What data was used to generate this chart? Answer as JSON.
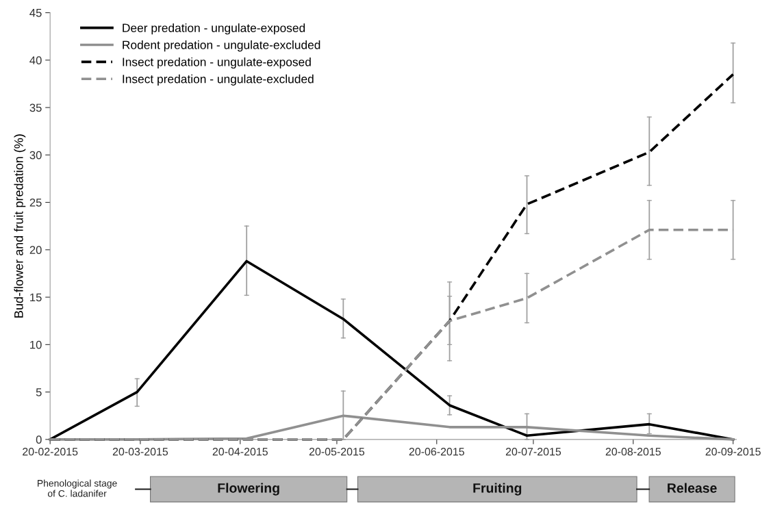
{
  "chart_data": {
    "type": "line",
    "ylabel": "Bud-flower and fruit predation (%)",
    "x": [
      "2015-02-20",
      "2015-03-19",
      "2015-04-22",
      "2015-05-22",
      "2015-06-24",
      "2015-07-18",
      "2015-08-25",
      "2015-09-20"
    ],
    "series": [
      {
        "name": "Deer predation - ungulate-exposed",
        "color": "#000000",
        "line_style": "solid",
        "values": [
          0,
          5.0,
          18.8,
          12.7,
          3.6,
          0.4,
          1.6,
          0
        ],
        "errors": [
          null,
          [
            3.5,
            6.4
          ],
          [
            15.2,
            22.5
          ],
          [
            10.7,
            14.8
          ],
          [
            2.6,
            4.6
          ],
          [
            0,
            2.7
          ],
          [
            0.6,
            2.7
          ],
          null
        ]
      },
      {
        "name": "Rodent predation - ungulate-excluded",
        "color": "#909090",
        "line_style": "solid",
        "values": [
          0,
          0,
          0.1,
          2.5,
          1.3,
          1.3,
          0.4,
          0
        ],
        "errors": [
          null,
          null,
          null,
          [
            0,
            5.1
          ],
          null,
          null,
          null,
          null
        ]
      },
      {
        "name": "Insect predation - ungulate-exposed",
        "color": "#000000",
        "line_style": "dashed",
        "values": [
          0,
          0,
          0,
          0,
          12.5,
          24.8,
          30.3,
          38.5
        ],
        "errors": [
          null,
          null,
          null,
          null,
          [
            8.3,
            16.6
          ],
          [
            21.7,
            27.8
          ],
          [
            26.8,
            34.0
          ],
          [
            35.5,
            41.8
          ]
        ]
      },
      {
        "name": "Insect predation - ungulate-excluded",
        "color": "#909090",
        "line_style": "dashed",
        "values": [
          0,
          0,
          0,
          0,
          12.5,
          14.9,
          22.1,
          22.1
        ],
        "errors": [
          null,
          null,
          null,
          null,
          [
            10.0,
            15.1
          ],
          [
            12.3,
            17.5
          ],
          [
            19.0,
            25.2
          ],
          [
            19.0,
            25.2
          ]
        ]
      }
    ],
    "xlim": [
      "2015-02-20",
      "2015-09-21"
    ],
    "xticks": [
      {
        "value": "2015-02-20",
        "label": "20-02-2015"
      },
      {
        "value": "2015-03-20",
        "label": "20-03-2015"
      },
      {
        "value": "2015-04-20",
        "label": "20-04-2015"
      },
      {
        "value": "2015-05-20",
        "label": "20-05-2015"
      },
      {
        "value": "2015-06-20",
        "label": "20-06-2015"
      },
      {
        "value": "2015-07-20",
        "label": "20-07-2015"
      },
      {
        "value": "2015-08-20",
        "label": "20-08-2015"
      },
      {
        "value": "2015-09-20",
        "label": "20-09-2015"
      }
    ],
    "ylim": [
      0,
      45
    ],
    "yticks": [
      0,
      5,
      10,
      15,
      20,
      25,
      30,
      35,
      40,
      45
    ],
    "grid": false,
    "legend": "top left",
    "marker": "none",
    "annotations": [
      "Phenological stage\nof C. ladanifer",
      "Flowering",
      "Fruiting",
      "Release"
    ]
  }
}
